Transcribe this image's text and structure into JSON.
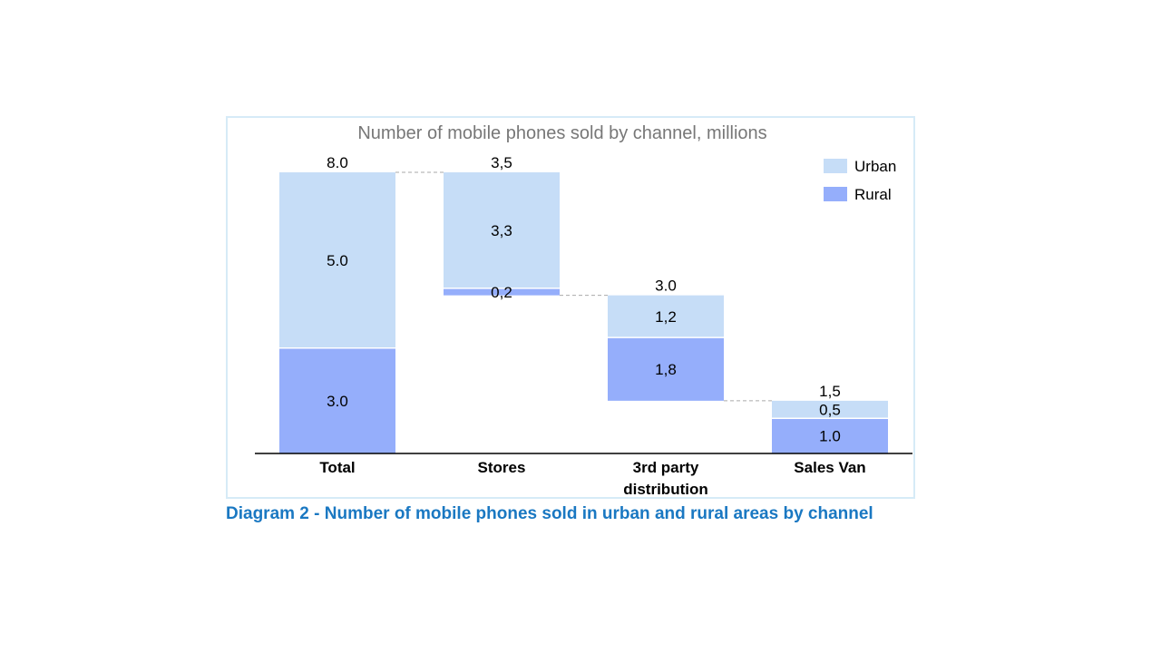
{
  "caption": "Diagram 2 - Number of mobile phones sold in urban and rural areas by channel",
  "colors": {
    "urban": "#c6ddf7",
    "rural": "#95aefb",
    "connector": "#aaaaaa",
    "title": "#777777",
    "caption": "#1a78c2"
  },
  "chart_data": {
    "type": "bar",
    "subtype": "waterfall-stacked",
    "title": "Number of mobile phones sold by channel, millions",
    "categories": [
      "Total",
      "Stores",
      "3rd party distribution",
      "Sales Van"
    ],
    "category_lines": [
      [
        "Total"
      ],
      [
        "Stores"
      ],
      [
        "3rd party",
        "distribution"
      ],
      [
        "Sales Van"
      ]
    ],
    "series": [
      {
        "name": "Rural",
        "values": [
          3.0,
          0.2,
          1.8,
          1.0
        ],
        "labels": [
          "3.0",
          "0,2",
          "1,8",
          "1.0"
        ]
      },
      {
        "name": "Urban",
        "values": [
          5.0,
          3.3,
          1.2,
          0.5
        ],
        "labels": [
          "5.0",
          "3,3",
          "1,2",
          "0,5"
        ]
      }
    ],
    "bases": [
      0,
      4.5,
      1.5,
      0
    ],
    "totals": [
      8.0,
      3.5,
      3.0,
      1.5
    ],
    "total_labels": [
      "8.0",
      "3,5",
      "3.0",
      "1,5"
    ],
    "legend": {
      "position": "top-right",
      "entries": [
        "Urban",
        "Rural"
      ]
    },
    "ylim": [
      0,
      8
    ],
    "grid": false,
    "xlabel": "",
    "ylabel": ""
  }
}
